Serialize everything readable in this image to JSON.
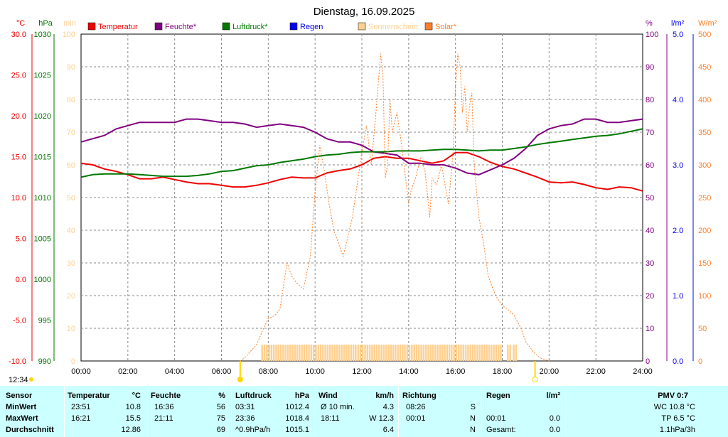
{
  "title": "Dienstag, 16.09.2025",
  "current_time": "12:34",
  "colors": {
    "temperature": "#ee0000",
    "humidity": "#800080",
    "pressure": "#007700",
    "rain": "#0000ee",
    "sunshine": "#ffd090",
    "solar": "#ff7f27",
    "panel": "#ccffff"
  },
  "chart_data": {
    "type": "line",
    "title": "Dienstag, 16.09.2025",
    "xlim": [
      0,
      24
    ],
    "x_ticks": [
      "00:00",
      "02:00",
      "04:00",
      "06:00",
      "08:00",
      "10:00",
      "12:00",
      "14:00",
      "16:00",
      "18:00",
      "20:00",
      "22:00",
      "24:00"
    ],
    "axes": {
      "temperature": {
        "unit": "°C",
        "range": [
          -10,
          30
        ],
        "ticks": [
          "30.0",
          "25.0",
          "20.0",
          "15.0",
          "10.0",
          "5.0",
          "0.0",
          "-5.0",
          "-10.0"
        ]
      },
      "pressure": {
        "unit": "hPa",
        "range": [
          990,
          1030
        ],
        "ticks": [
          "1030",
          "1025",
          "1020",
          "1015",
          "1010",
          "1005",
          "1000",
          "995",
          "990"
        ]
      },
      "sunshine": {
        "unit": "min",
        "range": [
          0,
          100
        ],
        "ticks": [
          "100",
          "90",
          "80",
          "70",
          "60",
          "50",
          "40",
          "30",
          "20",
          "10",
          "0"
        ]
      },
      "humidity": {
        "unit": "%",
        "range": [
          0,
          100
        ],
        "ticks": [
          "100",
          "90",
          "80",
          "70",
          "60",
          "50",
          "40",
          "30",
          "20",
          "10",
          "0"
        ]
      },
      "rain": {
        "unit": "l/m²",
        "range": [
          0,
          5
        ],
        "ticks": [
          "5.0",
          "4.0",
          "3.0",
          "2.0",
          "1.0",
          "0.0"
        ]
      },
      "solar": {
        "unit": "W/m²",
        "range": [
          0,
          500
        ],
        "ticks": [
          "500",
          "450",
          "400",
          "350",
          "300",
          "250",
          "200",
          "150",
          "100",
          "50",
          "0"
        ]
      }
    },
    "legend": [
      "Temperatur",
      "Feuchte*",
      "Luftdruck*",
      "Regen",
      "Sonnenschein",
      "Solar*"
    ],
    "grid": true,
    "series": [
      {
        "name": "Temperatur",
        "axis": "temperature",
        "x": [
          0,
          0.5,
          1,
          1.5,
          2,
          2.5,
          3,
          3.5,
          4,
          4.5,
          5,
          5.5,
          6,
          6.5,
          7,
          7.5,
          8,
          8.5,
          9,
          9.5,
          10,
          10.5,
          11,
          11.5,
          12,
          12.5,
          13,
          13.5,
          14,
          14.5,
          15,
          15.5,
          16,
          16.5,
          17,
          17.5,
          18,
          18.5,
          19,
          19.5,
          20,
          20.5,
          21,
          21.5,
          22,
          22.5,
          23,
          23.5,
          24
        ],
        "y": [
          14.2,
          14,
          13.5,
          13.2,
          12.8,
          12.3,
          12.3,
          12.5,
          12.2,
          11.9,
          11.7,
          11.7,
          11.5,
          11.3,
          11.3,
          11.5,
          11.8,
          12.2,
          12.5,
          12.4,
          12.4,
          13,
          13.3,
          13.5,
          14,
          14.8,
          15,
          14.8,
          14.8,
          14.5,
          14.2,
          14.5,
          15.5,
          15.5,
          15,
          14.3,
          13.8,
          13.5,
          13,
          12.5,
          11.9,
          11.8,
          11.9,
          11.6,
          11.2,
          11,
          11.3,
          11.2,
          10.8
        ]
      },
      {
        "name": "Feuchte*",
        "axis": "humidity",
        "x": [
          0,
          0.5,
          1,
          1.5,
          2,
          2.5,
          3,
          3.5,
          4,
          4.5,
          5,
          5.5,
          6,
          6.5,
          7,
          7.5,
          8,
          8.5,
          9,
          9.5,
          10,
          10.5,
          11,
          11.5,
          12,
          12.5,
          13,
          13.5,
          14,
          14.5,
          15,
          15.5,
          16,
          16.5,
          17,
          17.5,
          18,
          18.5,
          19,
          19.5,
          20,
          20.5,
          21,
          21.5,
          22,
          22.5,
          23,
          23.5,
          24
        ],
        "y": [
          67,
          68,
          69,
          71,
          72,
          73,
          73,
          73,
          73,
          74,
          74,
          73.5,
          73,
          73,
          72.5,
          71.5,
          72,
          72.5,
          72,
          71.5,
          70,
          68,
          67,
          67,
          66,
          64,
          63.5,
          63,
          60.5,
          60.5,
          60,
          60,
          59,
          57.5,
          57,
          58.5,
          60,
          62,
          65,
          69,
          71,
          72,
          72.5,
          74,
          74,
          73,
          73,
          73.5,
          74
        ]
      },
      {
        "name": "Luftdruck*",
        "axis": "pressure",
        "x": [
          0,
          0.5,
          1,
          1.5,
          2,
          2.5,
          3,
          3.5,
          4,
          4.5,
          5,
          5.5,
          6,
          6.5,
          7,
          7.5,
          8,
          8.5,
          9,
          9.5,
          10,
          10.5,
          11,
          11.5,
          12,
          12.5,
          13,
          13.5,
          14,
          14.5,
          15,
          15.5,
          16,
          16.5,
          17,
          17.5,
          18,
          18.5,
          19,
          19.5,
          20,
          20.5,
          21,
          21.5,
          22,
          22.5,
          23,
          23.5,
          24
        ],
        "y": [
          1012.5,
          1012.8,
          1012.9,
          1012.9,
          1012.9,
          1012.8,
          1012.7,
          1012.6,
          1012.6,
          1012.6,
          1012.7,
          1012.9,
          1013.2,
          1013.3,
          1013.6,
          1013.9,
          1014,
          1014.3,
          1014.5,
          1014.7,
          1015,
          1015.2,
          1015.3,
          1015.5,
          1015.6,
          1015.6,
          1015.6,
          1015.7,
          1015.7,
          1015.7,
          1015.8,
          1015.9,
          1015.9,
          1015.8,
          1015.7,
          1015.8,
          1015.8,
          1016,
          1016.2,
          1016.5,
          1016.7,
          1016.9,
          1017.1,
          1017.3,
          1017.5,
          1017.6,
          1017.8,
          1018.1,
          1018.4
        ]
      },
      {
        "name": "Solar*",
        "axis": "solar",
        "x": [
          6.8,
          7,
          7.5,
          7.8,
          8,
          8.3,
          8.5,
          8.8,
          9,
          9.2,
          9.5,
          9.8,
          10,
          10.2,
          10.4,
          10.6,
          10.8,
          11,
          11.2,
          11.4,
          11.6,
          11.8,
          12,
          12.2,
          12.4,
          12.6,
          12.8,
          12.9,
          13,
          13.1,
          13.2,
          13.3,
          13.5,
          13.7,
          13.9,
          14,
          14.1,
          14.3,
          14.5,
          14.7,
          14.9,
          15,
          15.2,
          15.4,
          15.5,
          15.7,
          15.9,
          16,
          16.1,
          16.2,
          16.3,
          16.4,
          16.5,
          16.6,
          16.7,
          16.8,
          17,
          17.2,
          17.4,
          17.6,
          17.8,
          18,
          18.2,
          18.5,
          18.8,
          19,
          19.3,
          19.6,
          20
        ],
        "y": [
          0,
          5,
          25,
          50,
          65,
          70,
          80,
          150,
          130,
          120,
          110,
          160,
          260,
          330,
          290,
          240,
          200,
          180,
          160,
          190,
          220,
          270,
          320,
          360,
          300,
          380,
          470,
          440,
          280,
          300,
          400,
          350,
          380,
          330,
          270,
          240,
          260,
          280,
          310,
          290,
          220,
          280,
          270,
          300,
          280,
          240,
          320,
          420,
          470,
          450,
          380,
          420,
          350,
          390,
          410,
          300,
          220,
          180,
          130,
          110,
          95,
          85,
          80,
          70,
          50,
          30,
          15,
          5,
          0
        ]
      }
    ],
    "sunshine_intervals": [
      [
        7.7,
        17.95
      ],
      [
        18.2,
        18.35
      ],
      [
        18.45,
        18.6
      ]
    ]
  },
  "stats": {
    "headers": {
      "sensor": "Sensor",
      "temperature": "Temperatur",
      "temperature_unit": "°C",
      "humidity": "Feuchte",
      "humidity_unit": "%",
      "pressure": "Luftdruck",
      "pressure_unit": "hPa",
      "wind": "Wind",
      "wind_unit": "km/h",
      "direction": "Richtung",
      "rain": "Regen",
      "rain_unit": "l/m²",
      "pmv": "PMV 0:7"
    },
    "rows": [
      {
        "label": "MinWert",
        "temp_time": "23:51",
        "temp_value": "10.8",
        "hum_time": "16:36",
        "hum_value": "56",
        "press_time": "03:31",
        "press_value": "1012.4",
        "wind_time": "Ø 10 min.",
        "wind_value": "4.3",
        "dir_time": "08:26",
        "dir_value": "S",
        "rain_time": "",
        "rain_value": "",
        "extra": "WC 10.8 °C"
      },
      {
        "label": "MaxWert",
        "temp_time": "16:21",
        "temp_value": "15.5",
        "hum_time": "21:11",
        "hum_value": "75",
        "press_time": "23:36",
        "press_value": "1018.4",
        "wind_time": "18:11",
        "wind_value": "W 12.3",
        "dir_time": "00:01",
        "dir_value": "N",
        "rain_time": "00:01",
        "rain_value": "0.0",
        "extra": "TP 6.5 °C"
      },
      {
        "label": "Durchschnitt",
        "temp_time": "",
        "temp_value": "12.86",
        "hum_time": "",
        "hum_value": "69",
        "press_time": "^0.9hPa/h",
        "press_value": "1015.1",
        "wind_time": "",
        "wind_value": "6.4",
        "dir_time": "",
        "dir_value": "N",
        "rain_time": "Gesamt:",
        "rain_value": "0.0",
        "extra": "1.1hPa/3h"
      }
    ]
  }
}
